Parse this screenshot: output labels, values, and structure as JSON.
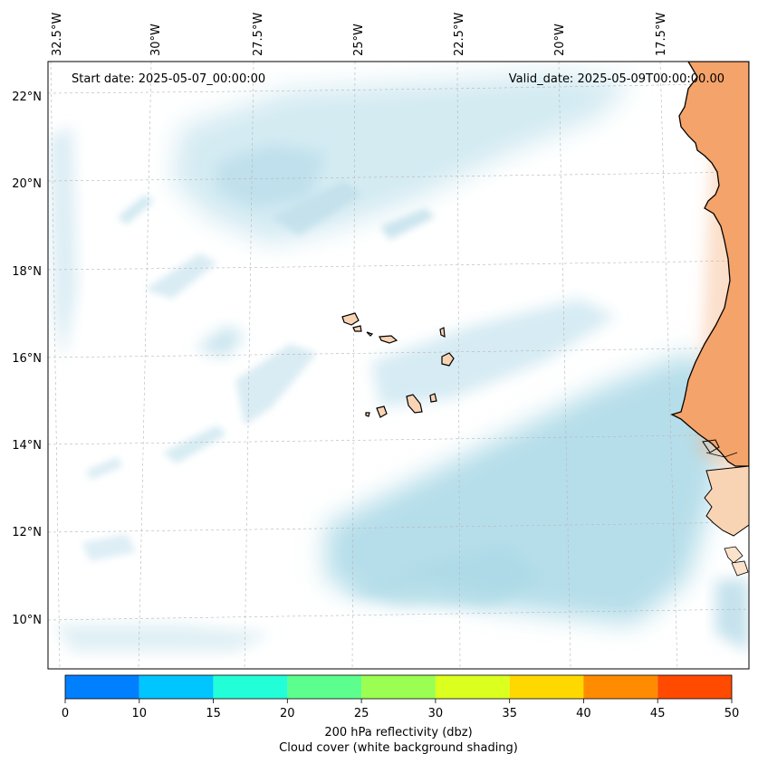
{
  "map": {
    "start_label": "Start date: 2025-05-07_00:00:00",
    "valid_label": "Valid_date: 2025-05-09T00:00:00.00",
    "lon_labels": [
      "32.5°W",
      "30°W",
      "27.5°W",
      "25°W",
      "22.5°W",
      "20°W",
      "17.5°W"
    ],
    "lat_labels": [
      "22°N",
      "20°N",
      "18°N",
      "16°N",
      "14°N",
      "12°N",
      "10°N"
    ],
    "colors": {
      "cloud": "#a9d8e6",
      "land": "#f4a36a",
      "land_light": "#f9d4b4",
      "coast": "#000000"
    }
  },
  "colorbar": {
    "ticks": [
      "0",
      "10",
      "15",
      "20",
      "25",
      "30",
      "35",
      "40",
      "45",
      "50"
    ],
    "colors": [
      "#0080ff",
      "#00c5ff",
      "#22ffd8",
      "#5cff8e",
      "#9aff52",
      "#dbff1e",
      "#ffd800",
      "#ff8c00",
      "#ff4a00"
    ],
    "label_line1": "200 hPa reflectivity (dbz)",
    "label_line2": "Cloud cover (white background shading)"
  }
}
